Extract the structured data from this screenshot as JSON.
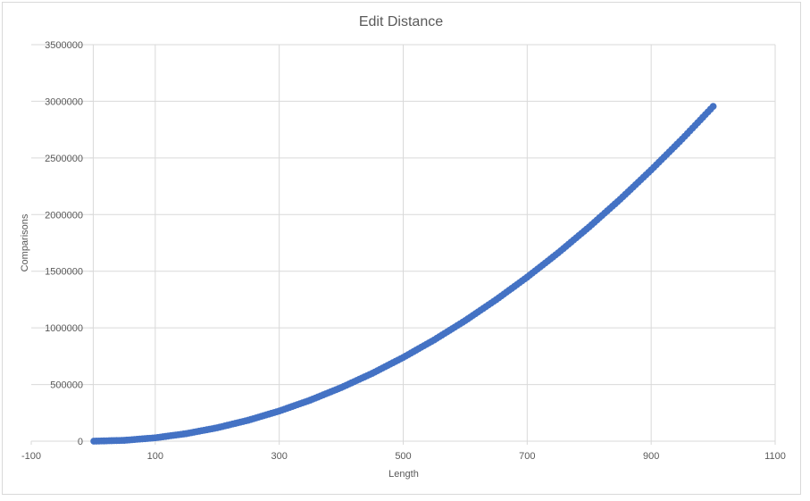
{
  "chart_data": {
    "type": "scatter",
    "title": "Edit Distance",
    "xlabel": "Length",
    "ylabel": "Comparisons",
    "xlim": [
      -100,
      1100
    ],
    "ylim": [
      0,
      3500000
    ],
    "x_ticks": [
      "-100",
      "100",
      "300",
      "500",
      "700",
      "900",
      "1100"
    ],
    "y_ticks": [
      "0",
      "500000",
      "1000000",
      "1500000",
      "2000000",
      "2500000",
      "3000000",
      "3500000"
    ],
    "grid": true,
    "legend": "none",
    "series": [
      {
        "color": "#4472c4",
        "marker": "circle",
        "x": [
          1,
          50,
          100,
          150,
          200,
          250,
          300,
          350,
          400,
          450,
          500,
          550,
          600,
          650,
          700,
          750,
          800,
          850,
          900,
          950,
          1000
        ],
        "y": [
          3,
          7400,
          29600,
          66500,
          118200,
          184700,
          266000,
          362000,
          473000,
          598500,
          739000,
          894000,
          1064000,
          1249000,
          1448000,
          1662000,
          1891000,
          2135000,
          2394000,
          2667000,
          2955000
        ]
      }
    ]
  },
  "colors": {
    "series": "#4472c4",
    "grid": "#d9d9d9",
    "axis_text": "#595959",
    "title_text": "#595959"
  }
}
